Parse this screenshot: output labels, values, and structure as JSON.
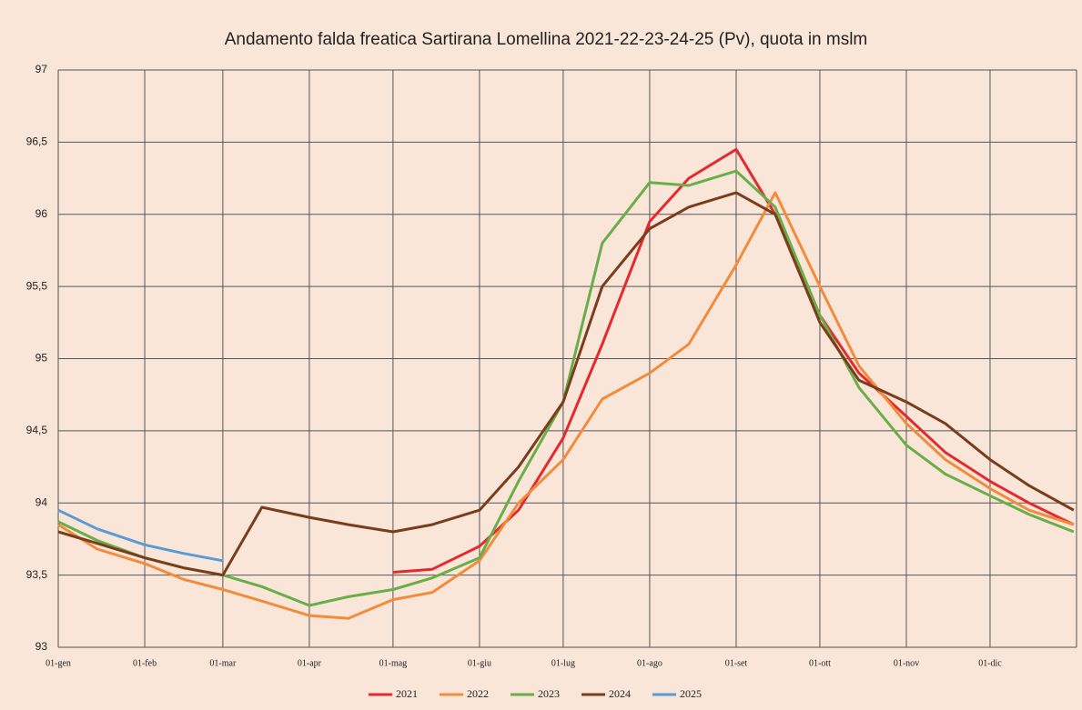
{
  "chart_data": {
    "type": "line",
    "title": "Andamento  falda freatica Sartirana Lomellina 2021-22-23-24-25 (Pv), quota in mslm",
    "x": [
      1,
      15,
      32,
      46,
      60,
      74,
      91,
      105,
      121,
      135,
      152,
      166,
      182,
      196,
      213,
      227,
      244,
      258,
      274,
      288,
      305,
      319,
      335,
      349,
      365
    ],
    "xlim": [
      1,
      366
    ],
    "xticks": [
      {
        "value": 1,
        "label": "01-gen"
      },
      {
        "value": 32,
        "label": "01-feb"
      },
      {
        "value": 60,
        "label": "01-mar"
      },
      {
        "value": 91,
        "label": "01-apr"
      },
      {
        "value": 121,
        "label": "01-mag"
      },
      {
        "value": 152,
        "label": "01-giu"
      },
      {
        "value": 182,
        "label": "01-lug"
      },
      {
        "value": 213,
        "label": "01-ago"
      },
      {
        "value": 244,
        "label": "01-set"
      },
      {
        "value": 274,
        "label": "01-ott"
      },
      {
        "value": 305,
        "label": "01-nov"
      },
      {
        "value": 335,
        "label": "01-dic"
      }
    ],
    "ylim": [
      93,
      97
    ],
    "yticks": [
      93,
      {
        "value": 93.5,
        "label": "93,5"
      },
      94,
      {
        "value": 94.5,
        "label": "94,5"
      },
      95,
      {
        "value": 95.5,
        "label": "95,5"
      },
      96,
      {
        "value": 96.5,
        "label": "96,5"
      },
      97
    ],
    "grid": true,
    "legend": "bottom",
    "series": [
      {
        "name": "2021",
        "color": "#e42a2f",
        "values": [
          null,
          null,
          null,
          null,
          null,
          null,
          null,
          null,
          93.52,
          93.54,
          93.7,
          93.95,
          94.45,
          95.1,
          95.95,
          96.25,
          96.45,
          96.0,
          95.3,
          94.9,
          94.6,
          94.35,
          94.15,
          94.0,
          93.85
        ]
      },
      {
        "name": "2022",
        "color": "#f28c3c",
        "values": [
          93.85,
          93.68,
          93.58,
          93.47,
          93.4,
          93.32,
          93.22,
          93.2,
          93.33,
          93.38,
          93.6,
          94.0,
          94.3,
          94.72,
          94.9,
          95.1,
          95.65,
          96.15,
          95.5,
          94.95,
          94.55,
          94.3,
          94.1,
          93.95,
          93.85
        ]
      },
      {
        "name": "2023",
        "color": "#6aae4a",
        "values": [
          93.87,
          93.74,
          93.62,
          93.55,
          93.5,
          93.42,
          93.29,
          93.35,
          93.4,
          93.48,
          93.62,
          94.15,
          94.7,
          95.8,
          96.22,
          96.2,
          96.3,
          96.05,
          95.3,
          94.8,
          94.4,
          94.2,
          94.05,
          93.92,
          93.8
        ]
      },
      {
        "name": "2024",
        "color": "#7a3d1c",
        "values": [
          93.8,
          93.72,
          93.62,
          93.55,
          93.5,
          93.97,
          93.9,
          93.85,
          93.8,
          93.85,
          93.95,
          94.25,
          94.7,
          95.5,
          95.9,
          96.05,
          96.15,
          96.0,
          95.25,
          94.85,
          94.7,
          94.55,
          94.3,
          94.12,
          93.95
        ]
      },
      {
        "name": "2025",
        "color": "#5b9bd5",
        "values": [
          93.95,
          93.82,
          93.71,
          93.65,
          93.6,
          null,
          null,
          null,
          null,
          null,
          null,
          null,
          null,
          null,
          null,
          null,
          null,
          null,
          null,
          null,
          null,
          null,
          null,
          null,
          null
        ]
      }
    ]
  }
}
